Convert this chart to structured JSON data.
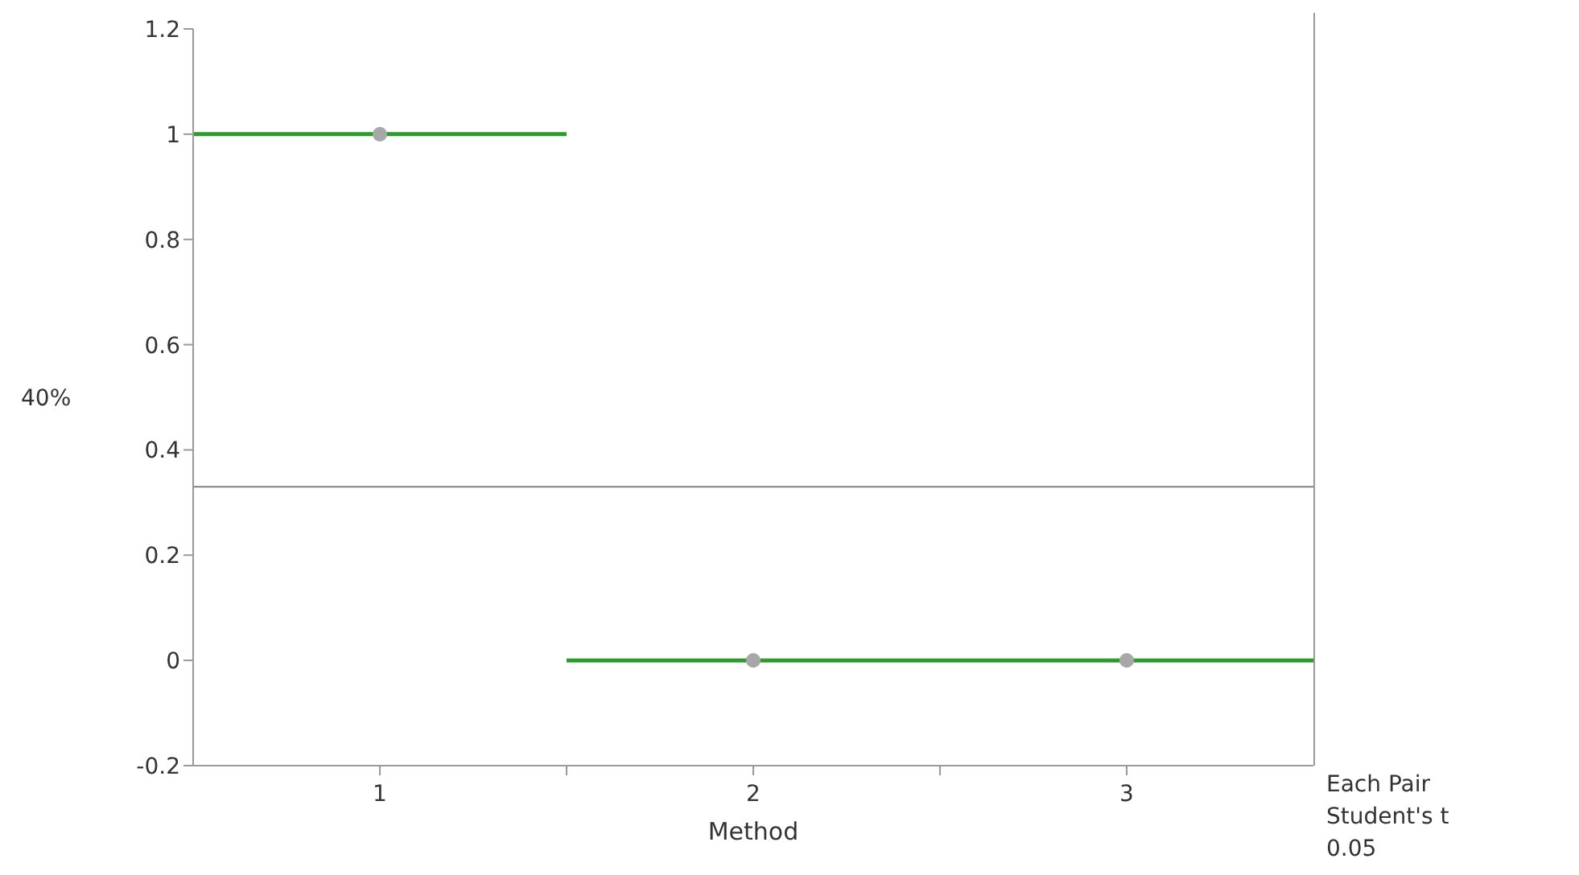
{
  "chart_data": {
    "type": "line",
    "xlabel": "Method",
    "ylabel": "40%",
    "x": [
      1,
      2,
      3
    ],
    "series": [
      {
        "marker": "none",
        "color": "#2e9a2e",
        "x": [
          0.5,
          1.5
        ],
        "values": [
          1,
          1
        ]
      },
      {
        "marker": "none",
        "color": "#2e9a2e",
        "x": [
          1.5,
          3.5
        ],
        "values": [
          0,
          0
        ]
      },
      {
        "type": "scatter",
        "color": "#a8a8a8",
        "values": [
          1,
          0,
          0
        ]
      }
    ],
    "marker": "circle",
    "xlim": [
      0.5,
      3.5
    ],
    "xticks": [
      1,
      {
        "value": 1.5,
        "label": null
      },
      2,
      {
        "value": 2.5,
        "label": null
      },
      3
    ],
    "ylim": [
      -0.2,
      1.2
    ],
    "yticks": [
      -0.2,
      0,
      0.2,
      0.4,
      0.6,
      0.8,
      1,
      1.2
    ],
    "ref_lines": [
      {
        "axis": "y",
        "value": 0.33,
        "color": "#808080"
      }
    ],
    "annotations": [
      "Each Pair",
      "Student's t",
      "0.05"
    ]
  }
}
